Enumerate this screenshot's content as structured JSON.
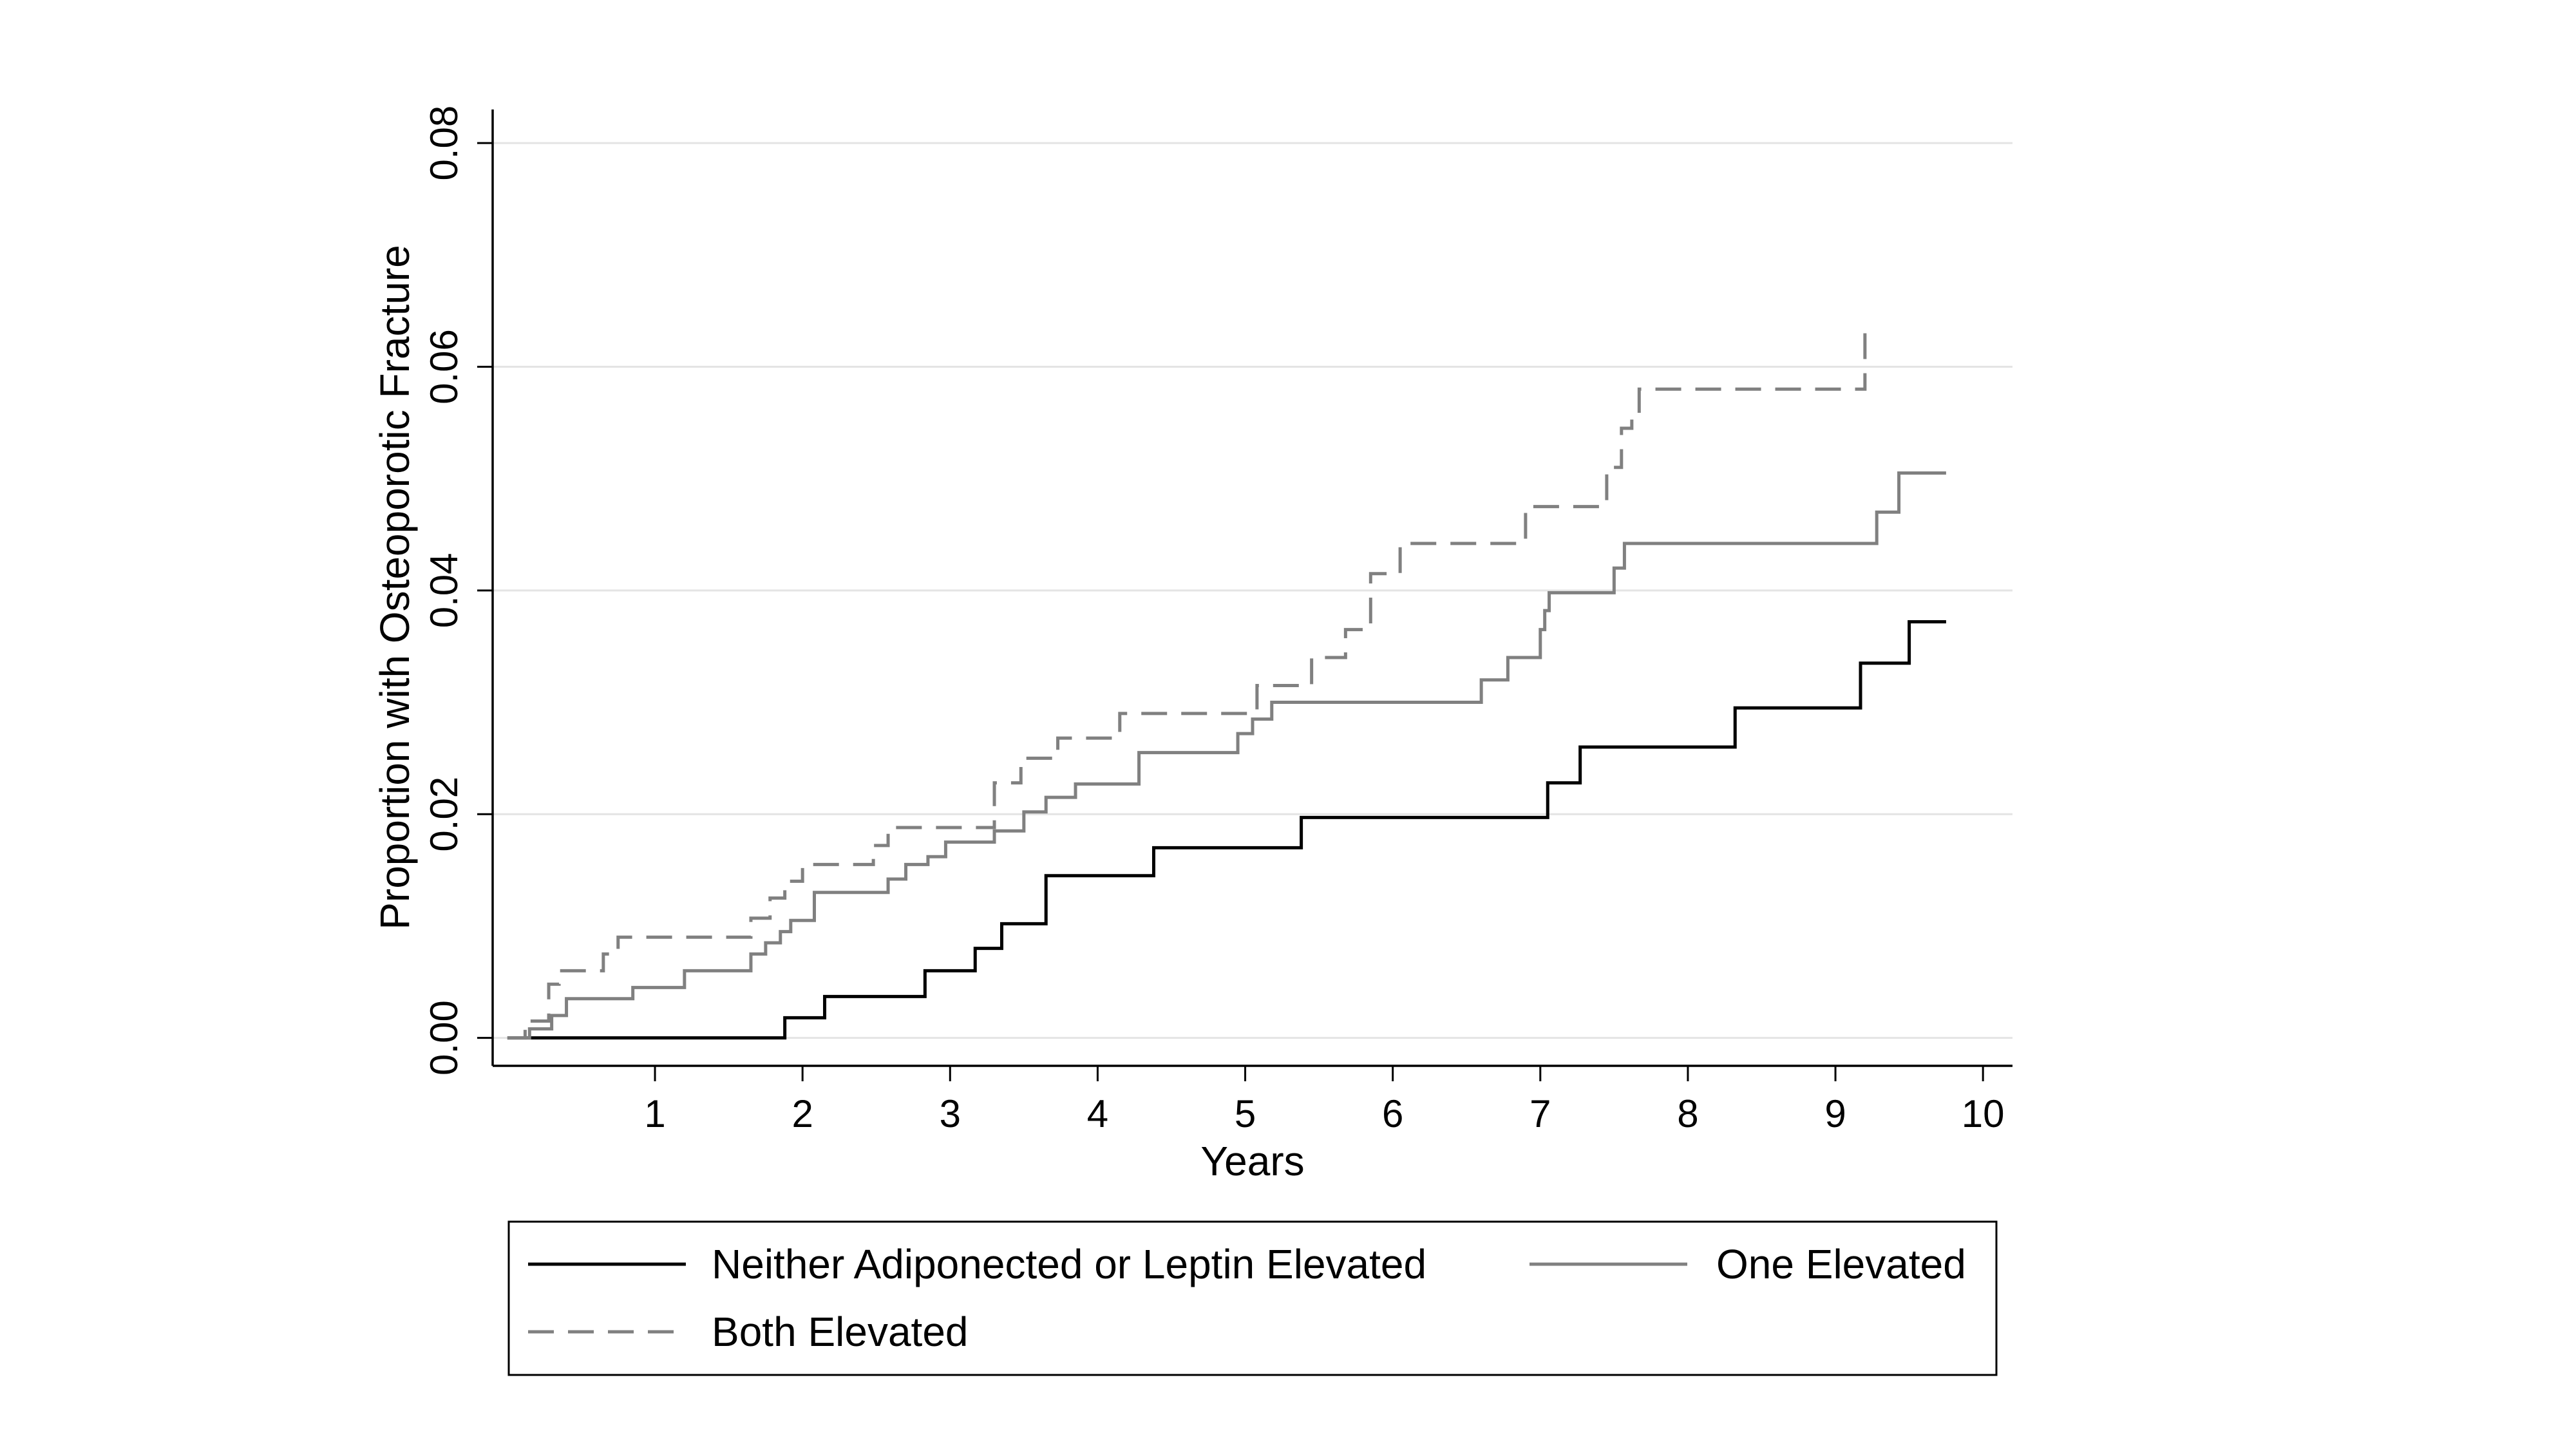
{
  "chart_data": {
    "type": "line",
    "step": true,
    "title": "",
    "xlabel": "Years",
    "ylabel": "Proportion with Osteoporotic Fracture",
    "xlim": [
      -0.1,
      10.2
    ],
    "ylim": [
      -0.0025,
      0.083
    ],
    "x_ticks": [
      1,
      2,
      3,
      4,
      5,
      6,
      7,
      8,
      9,
      10
    ],
    "x_tick_labels": [
      "1",
      "2",
      "3",
      "4",
      "5",
      "6",
      "7",
      "8",
      "9",
      "10"
    ],
    "y_ticks": [
      0,
      0.02,
      0.04,
      0.06,
      0.08
    ],
    "y_tick_labels": [
      "0.00",
      "0.02",
      "0.04",
      "0.06",
      "0.08"
    ],
    "grid": {
      "horizontal": true,
      "vertical": false
    },
    "legend_position": "bottom",
    "series": [
      {
        "name": "Neither Adiponected or Leptin Elevated",
        "color": "#000000",
        "dash": "solid",
        "x": [
          0,
          1.88,
          2.15,
          2.83,
          3.17,
          3.35,
          3.65,
          4.38,
          5.38,
          7.05,
          7.27,
          8.32,
          9.17,
          9.5,
          9.75
        ],
        "y": [
          0,
          0.0018,
          0.0037,
          0.006,
          0.008,
          0.0102,
          0.0145,
          0.017,
          0.0197,
          0.0228,
          0.026,
          0.0295,
          0.0335,
          0.0372,
          0.0372
        ]
      },
      {
        "name": "One Elevated",
        "color": "#808080",
        "dash": "solid",
        "x": [
          0,
          0.15,
          0.3,
          0.4,
          0.55,
          0.85,
          1.2,
          1.65,
          1.75,
          1.85,
          1.92,
          2.08,
          2.58,
          2.7,
          2.85,
          2.97,
          3.3,
          3.5,
          3.65,
          3.85,
          4.28,
          4.95,
          5.05,
          5.18,
          6.6,
          6.78,
          7.0,
          7.03,
          7.06,
          7.5,
          7.57,
          9.28,
          9.43,
          9.75
        ],
        "y": [
          0,
          0.0008,
          0.002,
          0.0035,
          0.0035,
          0.0045,
          0.006,
          0.0075,
          0.0085,
          0.0095,
          0.0105,
          0.013,
          0.0142,
          0.0155,
          0.0162,
          0.0175,
          0.0185,
          0.0202,
          0.0215,
          0.0227,
          0.0255,
          0.0272,
          0.0285,
          0.03,
          0.032,
          0.034,
          0.0365,
          0.0382,
          0.0398,
          0.042,
          0.0442,
          0.047,
          0.0505,
          0.0505
        ]
      },
      {
        "name": "Both Elevated",
        "color": "#808080",
        "dash": "dashed",
        "x": [
          0,
          0.12,
          0.28,
          0.35,
          0.65,
          0.75,
          1.65,
          1.78,
          1.88,
          2.0,
          2.48,
          2.58,
          2.78,
          3.3,
          3.48,
          3.73,
          4.15,
          5.08,
          5.45,
          5.68,
          5.85,
          6.05,
          6.9,
          7.45,
          7.55,
          7.62,
          7.67,
          9.2
        ],
        "y": [
          0,
          0.0015,
          0.0048,
          0.006,
          0.0075,
          0.009,
          0.0107,
          0.0125,
          0.014,
          0.0155,
          0.0172,
          0.0188,
          0.0188,
          0.0228,
          0.025,
          0.0268,
          0.029,
          0.0315,
          0.034,
          0.0365,
          0.0415,
          0.0442,
          0.0475,
          0.051,
          0.0545,
          0.0558,
          0.058,
          0.0635
        ]
      }
    ]
  }
}
